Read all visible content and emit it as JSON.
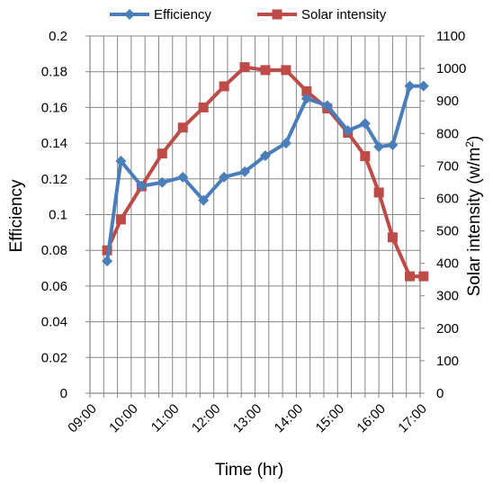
{
  "chart_data": {
    "type": "line",
    "title": "",
    "xlabel": "Time (hr)",
    "ylabel": "Efficiency",
    "ylabel_right_text": "Solar intensity (w/m",
    "ylabel_right_sup": "2",
    "ylabel_right_close": ")",
    "x_tick_labels": [
      "09:00",
      "10:00",
      "11:00",
      "12:00",
      "13:00",
      "14:00",
      "15:00",
      "16:00",
      "17:00"
    ],
    "y_left_ticks": [
      "0",
      "0.02",
      "0.04",
      "0.06",
      "0.08",
      "0.1",
      "0.12",
      "0.14",
      "0.16",
      "0.18",
      "0.2"
    ],
    "y_right_ticks": [
      "0",
      "100",
      "200",
      "300",
      "400",
      "500",
      "600",
      "700",
      "800",
      "900",
      "1000",
      "1100"
    ],
    "ylim_left": [
      0,
      0.2
    ],
    "ylim_right": [
      0,
      1100
    ],
    "grid": true,
    "legend_position": "top",
    "x": [
      "09:00",
      "09:20",
      "09:40",
      "10:00",
      "10:20",
      "10:40",
      "11:00",
      "11:20",
      "11:40",
      "12:00",
      "12:20",
      "12:40",
      "13:00",
      "13:20",
      "13:40",
      "14:00",
      "14:20",
      "14:40",
      "15:00",
      "15:20",
      "15:40",
      "16:00",
      "16:20",
      "16:40",
      "17:00"
    ],
    "series": [
      {
        "name": "Efficiency",
        "axis": "left",
        "color": "#4a7ebb",
        "marker": "diamond",
        "x": [
          "09:25",
          "09:45",
          "10:15",
          "10:45",
          "11:15",
          "11:45",
          "12:15",
          "12:45",
          "13:15",
          "13:45",
          "14:15",
          "14:45",
          "15:15",
          "15:40",
          "16:00",
          "16:20",
          "16:45",
          "17:05"
        ],
        "values": [
          0.074,
          0.13,
          0.116,
          0.118,
          0.121,
          0.108,
          0.121,
          0.124,
          0.133,
          0.14,
          0.165,
          0.161,
          0.147,
          0.151,
          0.138,
          0.139,
          0.172,
          0.172
        ]
      },
      {
        "name": "Solar intensity",
        "axis": "right",
        "color": "#be4b48",
        "marker": "square",
        "x": [
          "09:25",
          "09:45",
          "10:15",
          "10:45",
          "11:15",
          "11:45",
          "12:15",
          "12:45",
          "13:15",
          "13:45",
          "14:15",
          "14:45",
          "15:15",
          "15:40",
          "16:00",
          "16:20",
          "16:45",
          "17:05"
        ],
        "values": [
          440,
          535,
          637,
          738,
          818,
          880,
          945,
          1004,
          995,
          995,
          930,
          877,
          802,
          730,
          618,
          480,
          360,
          360
        ]
      }
    ]
  }
}
